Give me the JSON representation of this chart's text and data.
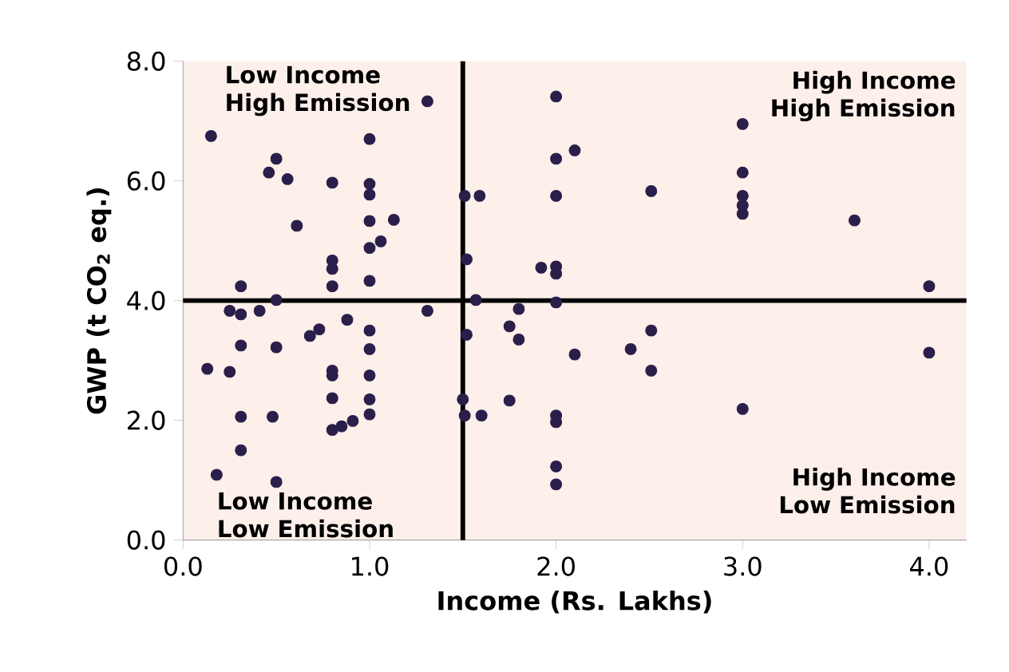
{
  "chart_data": {
    "type": "scatter",
    "xlabel": "Income (Rs. Lakhs)",
    "ylabel": "GWP (t CO$_{2}$ eq.)",
    "x": [
      1.31,
      0.15,
      1.0,
      0.5,
      0.46,
      0.56,
      0.8,
      1.0,
      1.0,
      0.61,
      1.0,
      1.13,
      1.06,
      1.0,
      0.8,
      0.8,
      0.8,
      1.0,
      0.31,
      0.5,
      0.25,
      0.31,
      0.41,
      1.31,
      0.73,
      0.68,
      0.88,
      1.0,
      0.31,
      0.5,
      1.0,
      0.13,
      0.25,
      0.8,
      0.8,
      1.0,
      0.8,
      1.0,
      1.0,
      0.31,
      0.48,
      0.8,
      0.85,
      0.91,
      0.31,
      0.18,
      0.5,
      2.0,
      2.0,
      2.1,
      1.51,
      1.59,
      2.0,
      2.51,
      1.52,
      1.92,
      2.0,
      2.0,
      1.57,
      2.0,
      1.8,
      1.75,
      1.8,
      1.52,
      2.51,
      2.1,
      2.4,
      2.51,
      1.5,
      1.51,
      1.6,
      1.75,
      2.0,
      2.0,
      2.0,
      2.0,
      3.0,
      3.0,
      3.0,
      3.0,
      3.0,
      3.6,
      4.0,
      4.0,
      3.0
    ],
    "values": [
      7.33,
      6.75,
      6.7,
      6.37,
      6.14,
      6.03,
      5.97,
      5.95,
      5.77,
      5.25,
      5.33,
      5.35,
      4.99,
      4.88,
      4.67,
      4.53,
      4.24,
      4.33,
      4.24,
      4.01,
      3.83,
      3.77,
      3.83,
      3.83,
      3.52,
      3.41,
      3.68,
      3.5,
      3.25,
      3.22,
      3.19,
      2.86,
      2.81,
      2.83,
      2.75,
      2.75,
      2.37,
      2.35,
      2.1,
      2.06,
      2.06,
      1.84,
      1.9,
      1.99,
      1.5,
      1.09,
      0.97,
      7.41,
      6.37,
      6.51,
      5.75,
      5.75,
      5.75,
      5.83,
      4.69,
      4.55,
      4.57,
      4.45,
      4.01,
      3.97,
      3.86,
      3.57,
      3.35,
      3.43,
      3.5,
      3.1,
      3.19,
      2.83,
      2.35,
      2.08,
      2.08,
      2.33,
      2.08,
      1.97,
      1.23,
      0.93,
      6.95,
      6.14,
      5.75,
      5.59,
      5.45,
      5.34,
      4.24,
      3.13,
      2.19
    ],
    "color": "#2a1f4a",
    "marker": "circle",
    "xlim": [
      0,
      4.2
    ],
    "ylim": [
      0,
      8
    ],
    "xticks": [
      {
        "value": 0,
        "label": "0.0"
      },
      {
        "value": 1,
        "label": "1.0"
      },
      {
        "value": 2,
        "label": "2.0"
      },
      {
        "value": 3,
        "label": "3.0"
      },
      {
        "value": 4,
        "label": "4.0"
      }
    ],
    "yticks": [
      {
        "value": 0,
        "label": "0.0"
      },
      {
        "value": 2,
        "label": "2.0"
      },
      {
        "value": 4,
        "label": "4.0"
      },
      {
        "value": 6,
        "label": "6.0"
      },
      {
        "value": 8,
        "label": "8.0"
      }
    ],
    "ref_lines": [
      {
        "axis": "x",
        "value": 1.5,
        "color": "#000000"
      },
      {
        "axis": "y",
        "value": 4.0,
        "color": "#000000"
      }
    ],
    "annotations": [
      "Low Income High Emission",
      "High Income High Emission",
      "Low Income Low Emission",
      "High Income Low Emission"
    ]
  }
}
